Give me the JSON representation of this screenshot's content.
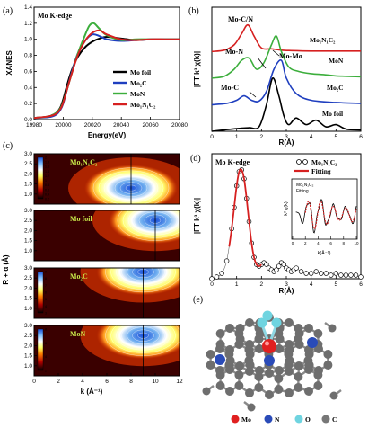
{
  "chart_data": [
    {
      "panel": "(a)",
      "type": "line",
      "title": "Mo K-edge",
      "xlabel": "Energy(eV)",
      "ylabel": "XANES",
      "xlim": [
        19980,
        20080
      ],
      "ylim": [
        0,
        1.4
      ],
      "xticks": [
        19980,
        20000,
        20020,
        20040,
        20060,
        20080
      ],
      "yticks": [
        0.0,
        0.2,
        0.4,
        0.6,
        0.8,
        1.0,
        1.2,
        1.4
      ],
      "legend_position": "bottom-right",
      "series": [
        {
          "name": "Mo foil",
          "color": "#000000",
          "x": [
            19980,
            19990,
            19995,
            19998,
            20000,
            20003,
            20006,
            20010,
            20015,
            20020,
            20025,
            20030,
            20040,
            20050,
            20060,
            20070,
            20080
          ],
          "y": [
            0.02,
            0.04,
            0.08,
            0.15,
            0.25,
            0.45,
            0.62,
            0.78,
            0.9,
            0.97,
            1.01,
            1.03,
            1.01,
            0.99,
            1.0,
            1.0,
            1.0
          ]
        },
        {
          "name": "Mo2C",
          "color": "#1f3fbf",
          "x": [
            19980,
            19990,
            19995,
            19998,
            20000,
            20003,
            20006,
            20010,
            20015,
            20020,
            20025,
            20030,
            20040,
            20050,
            20060,
            20070,
            20080
          ],
          "y": [
            0.02,
            0.03,
            0.06,
            0.12,
            0.2,
            0.4,
            0.6,
            0.82,
            0.98,
            1.06,
            1.04,
            1.0,
            0.98,
            0.99,
            1.0,
            1.0,
            1.0
          ]
        },
        {
          "name": "MoN",
          "color": "#3cae3c",
          "x": [
            19980,
            19990,
            19995,
            19998,
            20000,
            20003,
            20006,
            20010,
            20015,
            20018,
            20021,
            20025,
            20030,
            20040,
            20050,
            20060,
            20070,
            20080
          ],
          "y": [
            0.02,
            0.04,
            0.08,
            0.14,
            0.22,
            0.4,
            0.58,
            0.82,
            1.05,
            1.17,
            1.2,
            1.13,
            1.05,
            0.99,
            1.0,
            1.0,
            1.0,
            1.0
          ]
        },
        {
          "name": "Mo1N1C2",
          "color": "#d62020",
          "x": [
            19980,
            19990,
            19995,
            19998,
            20000,
            20003,
            20006,
            20010,
            20015,
            20020,
            20025,
            20030,
            20040,
            20050,
            20060,
            20070,
            20080
          ],
          "y": [
            0.02,
            0.04,
            0.07,
            0.13,
            0.21,
            0.4,
            0.58,
            0.8,
            0.98,
            1.08,
            1.11,
            1.06,
            1.0,
            0.99,
            1.0,
            1.0,
            1.0
          ]
        }
      ]
    },
    {
      "panel": "(b)",
      "type": "line",
      "xlabel": "R(Å)",
      "ylabel": "|FT k³ χ(k)|",
      "xlim": [
        0,
        6
      ],
      "xticks": [
        0,
        1,
        2,
        3,
        4,
        5,
        6
      ],
      "series": [
        {
          "name": "Mo1N1C2",
          "color": "#d62020",
          "offset": 18,
          "x": [
            0,
            0.5,
            0.9,
            1.2,
            1.45,
            1.7,
            2.0,
            2.4,
            2.8,
            3.2,
            4,
            5,
            6
          ],
          "y": [
            0,
            0.3,
            1.5,
            4.0,
            6.0,
            3.5,
            0.8,
            0.6,
            0.3,
            0.2,
            0.1,
            0.1,
            0.1
          ]
        },
        {
          "name": "MoN",
          "color": "#3cae3c",
          "offset": 12,
          "x": [
            0,
            0.5,
            0.9,
            1.2,
            1.5,
            1.8,
            2.1,
            2.4,
            2.6,
            2.8,
            3.1,
            3.5,
            4,
            4.5,
            5,
            6
          ],
          "y": [
            0,
            0.4,
            2.0,
            4.0,
            4.5,
            2.0,
            3.5,
            7.5,
            9.5,
            6.0,
            2.5,
            1.5,
            1.0,
            0.8,
            0.5,
            0.3
          ]
        },
        {
          "name": "Mo2C",
          "color": "#1f3fbf",
          "offset": 6,
          "x": [
            0,
            0.6,
            1.0,
            1.3,
            1.6,
            1.9,
            2.2,
            2.5,
            2.8,
            3.0,
            3.4,
            4,
            5,
            6
          ],
          "y": [
            0,
            0.3,
            1.0,
            2.0,
            1.0,
            0.8,
            3.0,
            8.0,
            10.0,
            6.0,
            2.5,
            1.0,
            0.5,
            0.3
          ]
        },
        {
          "name": "Mo foil",
          "color": "#000000",
          "offset": 0,
          "x": [
            0,
            0.5,
            1.0,
            1.5,
            1.9,
            2.2,
            2.45,
            2.7,
            2.9,
            3.1,
            3.4,
            3.8,
            4.2,
            4.6,
            5.0,
            5.4,
            6.0
          ],
          "y": [
            0,
            0.3,
            0.6,
            0.8,
            1.0,
            6.0,
            12.0,
            8.0,
            3.5,
            1.5,
            3.0,
            1.5,
            2.5,
            1.0,
            1.5,
            0.5,
            0.3
          ]
        }
      ],
      "annotations": [
        "Mo-C/N",
        "Mo-N",
        "Mo-Mo",
        "Mo-C"
      ]
    },
    {
      "panel": "(c)",
      "type": "heatmap",
      "xlabel": "k (Å⁻¹)",
      "ylabel": "R + α (Å)",
      "xlim": [
        0,
        12
      ],
      "ylim": [
        0.5,
        3.0
      ],
      "xticks": [
        0,
        2,
        4,
        6,
        8,
        10,
        12
      ],
      "yticks": [
        1.0,
        1.5,
        2.0,
        2.5,
        3.0
      ],
      "subplots": [
        {
          "name": "Mo1N1C2",
          "peak_k": 8,
          "peak_R": 1.3,
          "colorbar": [
            0.2,
            0.4,
            0.6,
            0.8,
            1.0,
            1.2,
            1.4,
            1.6,
            1.8,
            2.0
          ]
        },
        {
          "name": "Mo foil",
          "peak_k": 10,
          "peak_R": 2.5
        },
        {
          "name": "Mo2C",
          "peak_k": 9,
          "peak_R": 2.8,
          "colorbar": [
            3,
            4,
            5,
            6,
            7,
            8,
            9
          ]
        },
        {
          "name": "MoN",
          "peak_k": 9,
          "peak_R": 2.5,
          "colorbar": [
            2,
            4,
            6,
            8
          ]
        }
      ]
    },
    {
      "panel": "(d)",
      "type": "scatter",
      "title": "Mo K-edge",
      "xlabel": "R(Å)",
      "ylabel": "|FT k³ χ(k)|",
      "xlim": [
        0,
        6
      ],
      "xticks": [
        0,
        1,
        2,
        3,
        4,
        5,
        6
      ],
      "legend_position": "top-right",
      "series": [
        {
          "name": "Mo1N1C2",
          "style": "open-circle",
          "color": "#000000",
          "x": [
            0,
            0.2,
            0.4,
            0.6,
            0.8,
            0.9,
            1.0,
            1.1,
            1.2,
            1.3,
            1.4,
            1.5,
            1.6,
            1.7,
            1.8,
            1.9,
            2.0,
            2.1,
            2.2,
            2.3,
            2.4,
            2.5,
            2.6,
            2.7,
            2.8,
            2.9,
            3.0,
            3.1,
            3.2,
            3.3,
            3.4,
            3.6,
            3.8,
            4.0,
            4.2,
            4.4,
            4.6,
            4.8,
            5.0,
            5.2,
            5.4,
            5.6,
            5.8,
            6.0
          ],
          "y": [
            0,
            0.1,
            0.3,
            1.0,
            2.8,
            4.0,
            5.2,
            6.0,
            6.1,
            5.6,
            4.5,
            3.2,
            2.0,
            1.2,
            0.8,
            0.7,
            0.8,
            0.9,
            0.8,
            0.6,
            0.5,
            0.4,
            0.5,
            0.7,
            0.9,
            0.8,
            0.6,
            0.5,
            0.4,
            0.5,
            0.6,
            0.4,
            0.3,
            0.3,
            0.4,
            0.3,
            0.3,
            0.2,
            0.3,
            0.2,
            0.2,
            0.2,
            0.2,
            0.1
          ]
        },
        {
          "name": "Fitting",
          "style": "line",
          "color": "#d62020",
          "x": [
            0.7,
            0.8,
            0.9,
            1.0,
            1.1,
            1.2,
            1.3,
            1.4,
            1.5,
            1.6,
            1.7,
            1.8,
            1.9,
            2.0
          ],
          "y": [
            1.8,
            2.8,
            4.0,
            5.2,
            6.0,
            6.1,
            5.6,
            4.5,
            3.2,
            2.0,
            1.2,
            0.8,
            0.7,
            0.8
          ]
        }
      ],
      "inset": {
        "xlabel": "k(Å⁻¹)",
        "ylabel": "k³ χ(k)",
        "xlim": [
          0,
          10
        ],
        "xticks": [
          0,
          2,
          4,
          6,
          8,
          10
        ],
        "series": [
          "Mo1N1C2",
          "Fitting"
        ]
      }
    },
    {
      "panel": "(e)",
      "type": "diagram",
      "legend": [
        {
          "name": "Mo",
          "color": "#e02020"
        },
        {
          "name": "N",
          "color": "#2a4bb8"
        },
        {
          "name": "O",
          "color": "#6fd4e0"
        },
        {
          "name": "C",
          "color": "#777777"
        }
      ]
    }
  ],
  "text": {
    "a_panel": "(a)",
    "a_title": "Mo K-edge",
    "a_xlabel": "Energy(eV)",
    "a_ylabel": "XANES",
    "b_panel": "(b)",
    "b_xlabel": "R(Å)",
    "b_ylabel": "|FT k³ χ(k)|",
    "c_panel": "(c)",
    "c_xlabel": "k (Å⁻¹)",
    "c_ylabel": "R + α (Å)",
    "d_panel": "(d)",
    "d_title": "Mo K-edge",
    "d_xlabel": "R(Å)",
    "d_ylabel": "|FT k³ χ(k)|",
    "d_legend_sample": "Mo₁N₁C₂",
    "d_legend_fit": "Fitting",
    "d_inset_xlabel": "k(Å⁻¹)",
    "d_inset_ylabel": "k³ χ(k)",
    "d_inset_leg1": "Mo₁N₁C₂",
    "d_inset_leg2": "Fitting",
    "e_panel": "(e)",
    "leg_mofoil": "Mo foil",
    "leg_mo2c": "Mo₂C",
    "leg_mon": "MoN",
    "leg_mo1n1c2": "Mo₁N₁C₂",
    "b_lab_mo1n1c2": "Mo₁N₁C₂",
    "b_lab_mon": "MoN",
    "b_lab_mo2c": "Mo₂C",
    "b_lab_mofoil": "Mo foil",
    "b_ann_mocn": "Mo-C/N",
    "b_ann_mon": "Mo-N",
    "b_ann_momo": "Mo-Mo",
    "b_ann_moc": "Mo-C",
    "c_sub1": "Mo₁N₁C₂",
    "c_sub2": "Mo foil",
    "c_sub3": "Mo₂C",
    "c_sub4": "MoN",
    "e_leg_mo": "Mo",
    "e_leg_n": "N",
    "e_leg_o": "O",
    "e_leg_c": "C"
  }
}
